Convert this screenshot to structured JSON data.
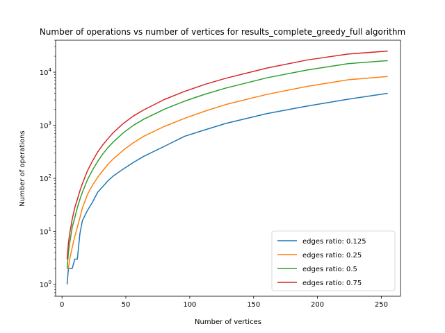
{
  "chart_data": {
    "type": "line",
    "title": "Number of operations vs number of vertices for results_complete_greedy_full algorithm",
    "xlabel": "Number of vertices",
    "ylabel": "Number of operations",
    "xlim": [
      -5,
      265
    ],
    "ylim": [
      0.6,
      40000
    ],
    "yscale": "log",
    "grid": false,
    "legend_position": "bottom-right",
    "x_ticks": [
      0,
      50,
      100,
      150,
      200,
      250
    ],
    "x_tick_labels": [
      "0",
      "50",
      "100",
      "150",
      "200",
      "250"
    ],
    "y_ticks": [
      1,
      10,
      100,
      1000,
      10000
    ],
    "y_tick_labels": [
      "10^0",
      "10^1",
      "10^2",
      "10^3",
      "10^4"
    ],
    "x": [
      4,
      5,
      6,
      8,
      10,
      12,
      14,
      16,
      20,
      24,
      28,
      32,
      36,
      40,
      48,
      56,
      64,
      80,
      96,
      112,
      128,
      160,
      192,
      224,
      255
    ],
    "series": [
      {
        "name": "edges ratio: 0.125",
        "color": "#1f77b4",
        "values": [
          1,
          2,
          2,
          2,
          3,
          3,
          9,
          16,
          25,
          36,
          55,
          70,
          90,
          110,
          150,
          200,
          260,
          400,
          620,
          820,
          1080,
          1650,
          2300,
          3100,
          4000
        ]
      },
      {
        "name": "edges ratio: 0.25",
        "color": "#ff7f0e",
        "values": [
          2,
          2,
          3,
          5,
          8,
          12,
          18,
          28,
          50,
          75,
          105,
          140,
          185,
          230,
          340,
          470,
          620,
          950,
          1350,
          1850,
          2450,
          3800,
          5400,
          7200,
          8300
        ]
      },
      {
        "name": "edges ratio: 0.5",
        "color": "#2ca02c",
        "values": [
          2,
          4,
          6,
          12,
          18,
          28,
          40,
          55,
          95,
          145,
          210,
          290,
          380,
          480,
          720,
          1000,
          1300,
          2000,
          2850,
          3850,
          5000,
          7800,
          11000,
          14500,
          16500
        ]
      },
      {
        "name": "edges ratio: 0.75",
        "color": "#d62728",
        "values": [
          3,
          6,
          9,
          17,
          28,
          40,
          58,
          80,
          140,
          215,
          315,
          430,
          560,
          720,
          1080,
          1500,
          1950,
          3050,
          4350,
          5900,
          7650,
          11900,
          17000,
          22000,
          25000
        ]
      }
    ]
  }
}
